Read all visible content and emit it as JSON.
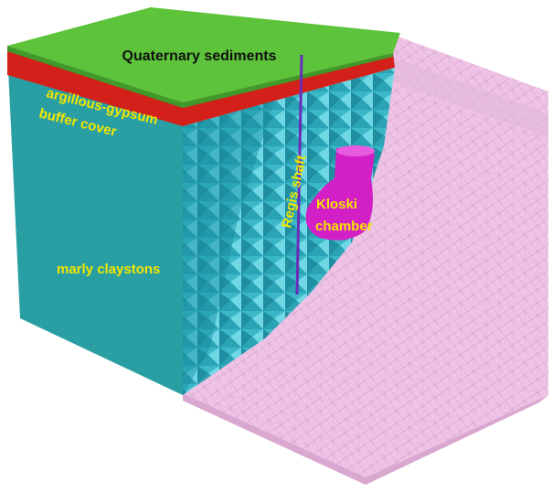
{
  "layers": {
    "top": "Quaternary sediments",
    "red": "argillous-gypsum",
    "buffer": "buffer cover",
    "main": "marly claystons"
  },
  "features": {
    "shaft": "Regis shaft",
    "chamber": [
      "Kloski",
      "chamber"
    ]
  }
}
